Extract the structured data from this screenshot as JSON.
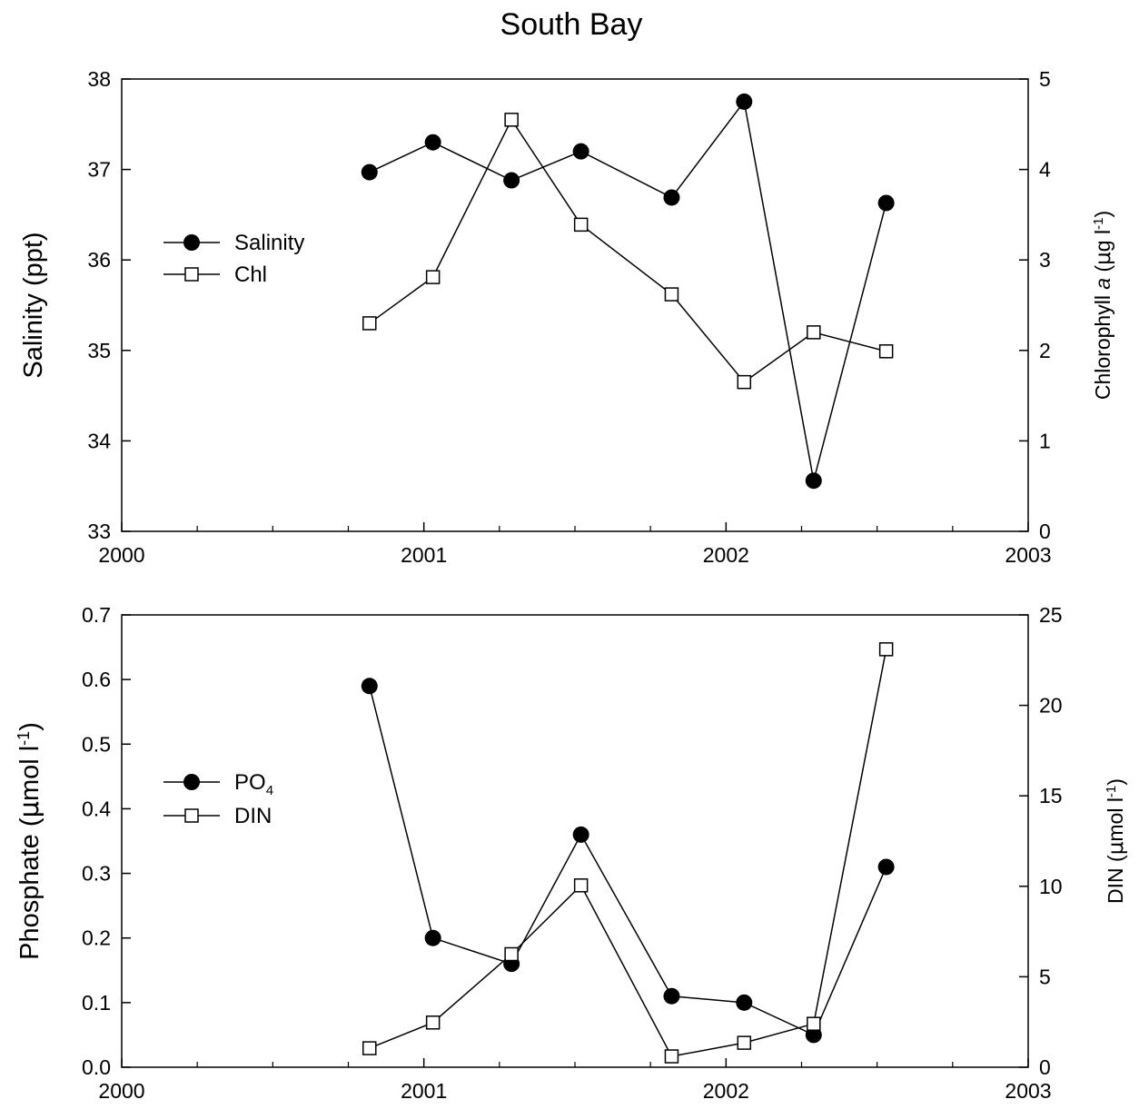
{
  "title": "South Bay",
  "chart_data": [
    {
      "type": "line",
      "name": "top-panel",
      "x_label": "",
      "x_range": [
        2000,
        2003
      ],
      "x_ticks": [
        "2000",
        "2001",
        "2002",
        "2003"
      ],
      "left_axis": {
        "label_main": "Salinity (ppt)",
        "range": [
          33,
          38
        ],
        "ticks": [
          "33",
          "34",
          "35",
          "36",
          "37",
          "38"
        ]
      },
      "right_axis": {
        "label_prefix": "Chlorophyll ",
        "label_italic": "a",
        "label_mid": " (",
        "label_mu": "μ",
        "label_unit": "g l",
        "label_sup": "-1",
        "label_close": ")",
        "range": [
          0,
          5
        ],
        "ticks": [
          "0",
          "1",
          "2",
          "3",
          "4",
          "5"
        ]
      },
      "legend": {
        "position": "left-middle",
        "entries": [
          {
            "label": "Salinity",
            "sub": "",
            "marker": "filled-circle"
          },
          {
            "label": "Chl",
            "sub": "",
            "marker": "open-square"
          }
        ]
      },
      "series": [
        {
          "name": "Salinity",
          "axis": "left",
          "marker": "filled-circle",
          "x": [
            2000.82,
            2001.03,
            2001.29,
            2001.52,
            2001.82,
            2002.06,
            2002.29,
            2002.53
          ],
          "y": [
            36.97,
            37.3,
            36.88,
            37.2,
            36.69,
            37.75,
            33.56,
            36.63
          ]
        },
        {
          "name": "Chl",
          "axis": "right",
          "marker": "open-square",
          "x": [
            2000.82,
            2001.03,
            2001.29,
            2001.52,
            2001.82,
            2002.06,
            2002.29,
            2002.53
          ],
          "y": [
            2.3,
            2.81,
            4.55,
            3.39,
            2.62,
            1.65,
            2.2,
            1.99
          ]
        }
      ]
    },
    {
      "type": "line",
      "name": "bottom-panel",
      "x_label": "",
      "x_range": [
        2000,
        2003
      ],
      "x_ticks": [
        "2000",
        "2001",
        "2002",
        "2003"
      ],
      "left_axis": {
        "label_main": "Phosphate (",
        "label_mu": "μ",
        "label_unit": "mol l",
        "label_sup": "-1",
        "label_close": ")",
        "range": [
          0,
          0.7
        ],
        "ticks": [
          "0.0",
          "0.1",
          "0.2",
          "0.3",
          "0.4",
          "0.5",
          "0.6",
          "0.7"
        ]
      },
      "right_axis": {
        "label_prefix": "DIN (",
        "label_mu": "μ",
        "label_unit": "mol l",
        "label_sup": "-1",
        "label_close": ")",
        "range": [
          0,
          25
        ],
        "ticks": [
          "0",
          "5",
          "10",
          "15",
          "20",
          "25"
        ]
      },
      "legend": {
        "position": "left-middle",
        "entries": [
          {
            "label": "PO",
            "sub": "4",
            "marker": "filled-circle"
          },
          {
            "label": "DIN",
            "sub": "",
            "marker": "open-square"
          }
        ]
      },
      "series": [
        {
          "name": "PO4",
          "axis": "left",
          "marker": "filled-circle",
          "x": [
            2000.82,
            2001.03,
            2001.29,
            2001.52,
            2001.82,
            2002.06,
            2002.29,
            2002.53
          ],
          "y": [
            0.59,
            0.2,
            0.16,
            0.36,
            0.11,
            0.1,
            0.05,
            0.31
          ]
        },
        {
          "name": "DIN",
          "axis": "right",
          "marker": "open-square",
          "x": [
            2000.82,
            2001.03,
            2001.29,
            2001.52,
            2001.82,
            2002.06,
            2002.29,
            2002.53
          ],
          "y": [
            1.05,
            2.47,
            6.25,
            10.05,
            0.6,
            1.35,
            2.4,
            23.1
          ]
        }
      ]
    }
  ]
}
